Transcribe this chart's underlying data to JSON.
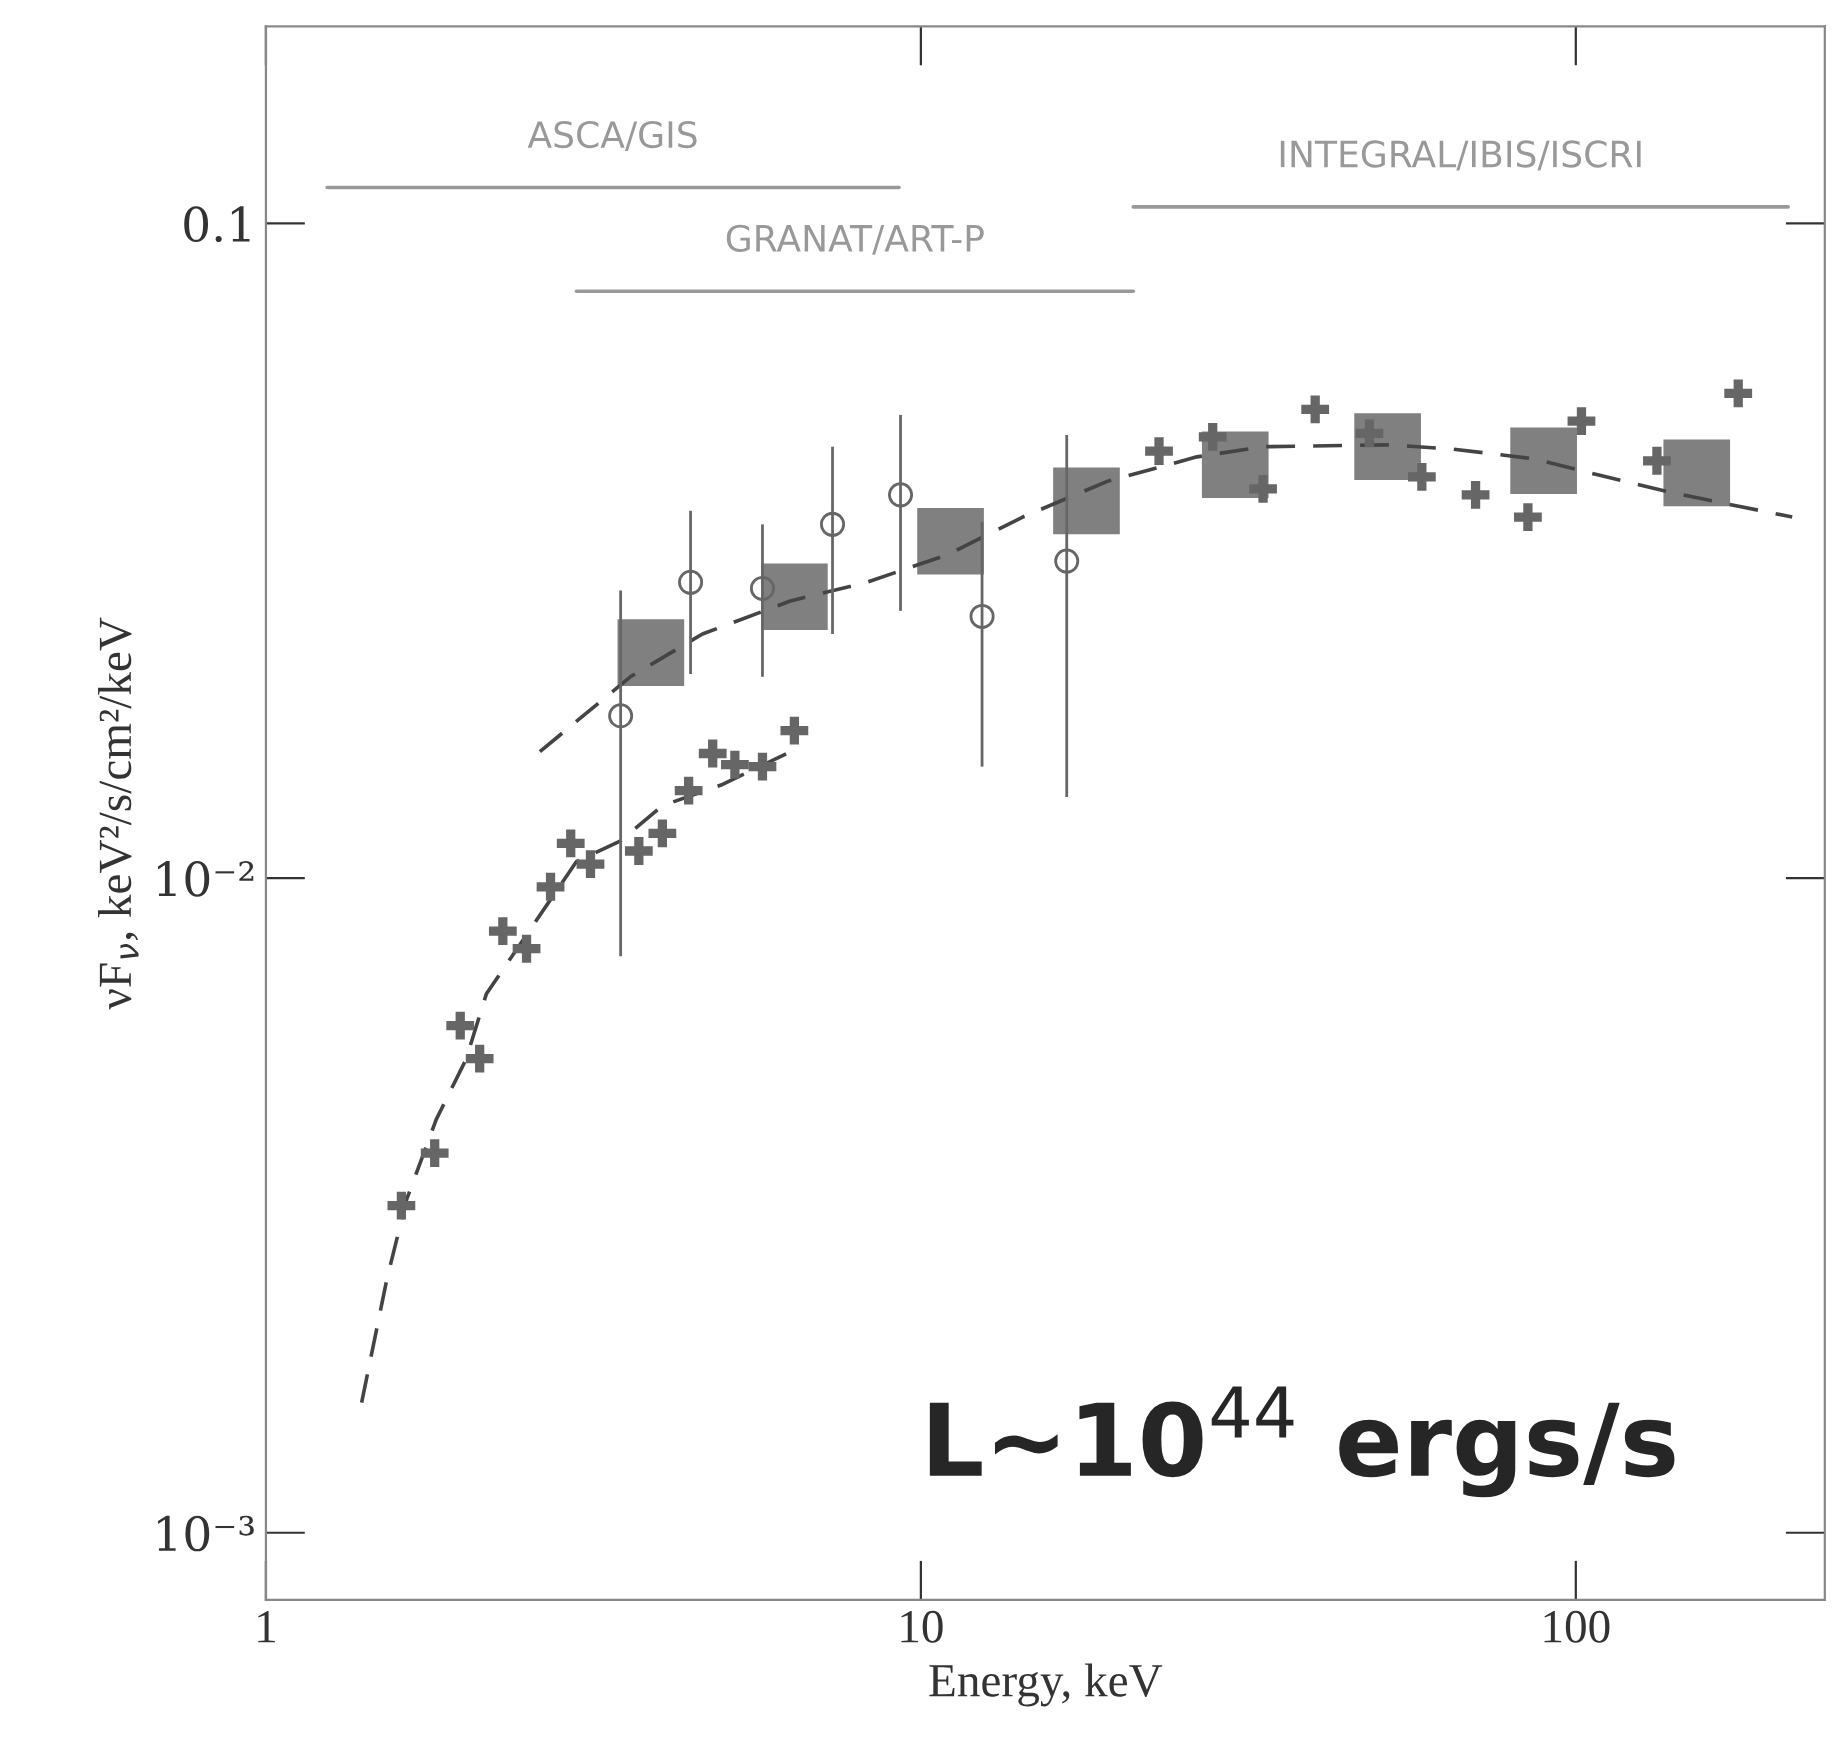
{
  "chart_data": {
    "type": "scatter",
    "xlabel": "Energy, keV",
    "ylabel": "νF$_{ν}$, keV²/s/cm²/keV",
    "log": "xy",
    "grid": false,
    "xlim": [
      1,
      240
    ],
    "ylim": [
      0.00079,
      0.2
    ],
    "xticks": [
      1,
      10,
      100
    ],
    "yticks": [
      {
        "value": 0.001,
        "label": "10⁻³"
      },
      {
        "value": 0.01,
        "label": "10⁻²"
      },
      0.1
    ],
    "annotations": [
      "L~10$^{44}$ ergs/s"
    ],
    "series": [
      {
        "type": "line",
        "name": "ASCA/GIS",
        "color": "#999999",
        "line_style": "solid",
        "marker": "none",
        "x": [
          1.24,
          9.26
        ],
        "values": [
          0.1135,
          0.1135
        ]
      },
      {
        "type": "line",
        "name": "GRANAT/ART-P",
        "color": "#999999",
        "line_style": "solid",
        "marker": "none",
        "x": [
          2.98,
          21.1
        ],
        "values": [
          0.0788,
          0.0788
        ]
      },
      {
        "type": "line",
        "name": "INTEGRAL/IBIS/ISCRI",
        "color": "#999999",
        "line_style": "solid",
        "marker": "none",
        "x": [
          21.1,
          211
        ],
        "values": [
          0.106,
          0.106
        ]
      },
      {
        "color": "#808080",
        "marker": "square",
        "x": [
          3.87,
          6.41,
          11.1,
          17.9,
          30.2,
          51.6,
          89.3,
          153
        ],
        "values": [
          0.0221,
          0.0269,
          0.0327,
          0.0377,
          0.0428,
          0.0456,
          0.0434,
          0.0416
        ]
      },
      {
        "type": "line",
        "color": "#444444",
        "line_style": "dashed",
        "marker": "none",
        "x": [
          2.62,
          3.6,
          4.64,
          6.32,
          8.26,
          11.0,
          14.3,
          19.3,
          26.4,
          33.3,
          52.3,
          65.1,
          86.3,
          108,
          140,
          214
        ],
        "values": [
          0.0156,
          0.0203,
          0.0236,
          0.0265,
          0.0283,
          0.0312,
          0.0356,
          0.0404,
          0.044,
          0.0456,
          0.0459,
          0.0452,
          0.0437,
          0.0413,
          0.0388,
          0.0356
        ]
      },
      {
        "type": "line",
        "color": "#444444",
        "line_style": "dashed",
        "marker": "none",
        "x": [
          1.4,
          1.53,
          1.64,
          1.82,
          2.02,
          2.17,
          2.59,
          2.98,
          3.48,
          4.03,
          4.98,
          6.41
        ],
        "values": [
          0.00158,
          0.00244,
          0.00323,
          0.00428,
          0.00528,
          0.00665,
          0.00863,
          0.0106,
          0.0114,
          0.0129,
          0.0139,
          0.0157
        ]
      },
      {
        "color": "#666666",
        "marker": "cross",
        "x": [
          1.61,
          1.81,
          1.98,
          2.12,
          2.3,
          2.5,
          2.72,
          2.92,
          3.13,
          3.71,
          4.03,
          4.42,
          4.81,
          5.2,
          5.73,
          6.41
        ],
        "values": [
          0.00316,
          0.0038,
          0.00595,
          0.0053,
          0.0083,
          0.0078,
          0.0097,
          0.0113,
          0.0105,
          0.011,
          0.0117,
          0.0136,
          0.0155,
          0.0149,
          0.0148,
          0.0168
        ]
      },
      {
        "color": "#666666",
        "marker": "circle",
        "x": [
          3.48,
          4.45,
          5.73,
          7.33,
          9.31,
          12.4,
          16.7
        ],
        "values": [
          0.0177,
          0.0283,
          0.0277,
          0.0347,
          0.0385,
          0.0251,
          0.0305
        ],
        "errors": [
          [
            0.0076,
            0.0275
          ],
          [
            0.0205,
            0.0364
          ],
          [
            0.0203,
            0.0347
          ],
          [
            0.0236,
            0.0456
          ],
          [
            0.0256,
            0.051
          ],
          [
            0.0148,
            0.035
          ],
          [
            0.0133,
            0.0475
          ]
        ]
      },
      {
        "color": "#666666",
        "marker": "cross",
        "x": [
          23.1,
          27.9,
          33.3,
          40.0,
          48.4,
          58.2,
          70.3,
          84.5,
          102,
          133,
          177
        ],
        "values": [
          0.0449,
          0.0472,
          0.0393,
          0.052,
          0.0478,
          0.041,
          0.0385,
          0.0356,
          0.0499,
          0.0434,
          0.055
        ]
      }
    ]
  }
}
